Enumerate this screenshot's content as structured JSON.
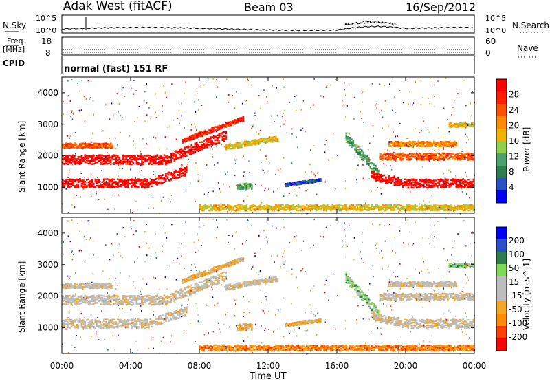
{
  "header": {
    "radar": "Adak West (fitACF)",
    "beam": "Beam 03",
    "date": "16/Sep/2012"
  },
  "noise_panel": {
    "left_label": "N.Sky",
    "left_ticks": [
      "10^5",
      "10^0"
    ],
    "right_label": "N.Search",
    "right_ticks": [
      "10^5",
      "10^0"
    ]
  },
  "freq_panel": {
    "left_label_1": "Freq.",
    "left_label_2": "[MHz]",
    "left_ticks": [
      "18",
      "8"
    ],
    "right_label": "Nave",
    "right_ticks": [
      "60",
      "0"
    ],
    "cpid_label": "CPID"
  },
  "mode_text": "normal (fast) 151 RF",
  "x_axis": {
    "label": "Time UT",
    "ticks": [
      "00:00",
      "04:00",
      "08:00",
      "12:00",
      "16:00",
      "20:00",
      "00:00"
    ]
  },
  "colors": {
    "power_scale": [
      "#0000ff",
      "#2850c8",
      "#2e7d4f",
      "#4aa36a",
      "#8fd14f",
      "#f0b400",
      "#ff8c00",
      "#ff5000",
      "#ff1e00",
      "#ff0000"
    ],
    "velocity_scale": [
      "#ff0000",
      "#ff4000",
      "#ff8c00",
      "#f5a623",
      "#bdbdbd",
      "#bdbdbd",
      "#7ed957",
      "#2e7d4f",
      "#2850c8",
      "#0000ff"
    ]
  },
  "chart_data": [
    {
      "type": "heatmap",
      "name": "power",
      "ylabel": "Slant Range [km]",
      "xlabel": "Time UT",
      "x_range_hours": [
        0,
        24
      ],
      "ylim": [
        180,
        4500
      ],
      "y_ticks": [
        "1000",
        "2000",
        "3000",
        "4000"
      ],
      "colorbar": {
        "label": "Power [dB]",
        "ticks": [
          "28",
          "24",
          "20",
          "16",
          "12",
          "8",
          "4"
        ],
        "range": [
          0,
          30
        ]
      }
    },
    {
      "type": "heatmap",
      "name": "velocity",
      "ylabel": "Slant Range [km]",
      "xlabel": "Time UT",
      "x_range_hours": [
        0,
        24
      ],
      "ylim": [
        180,
        4500
      ],
      "y_ticks": [
        "1000",
        "2000",
        "3000",
        "4000"
      ],
      "colorbar": {
        "label": "Velocity [m s^-1]",
        "ticks": [
          "200",
          "100",
          "50",
          "15",
          "-15",
          "-50",
          "-100",
          "-200"
        ],
        "range": [
          -250,
          250
        ]
      }
    }
  ]
}
